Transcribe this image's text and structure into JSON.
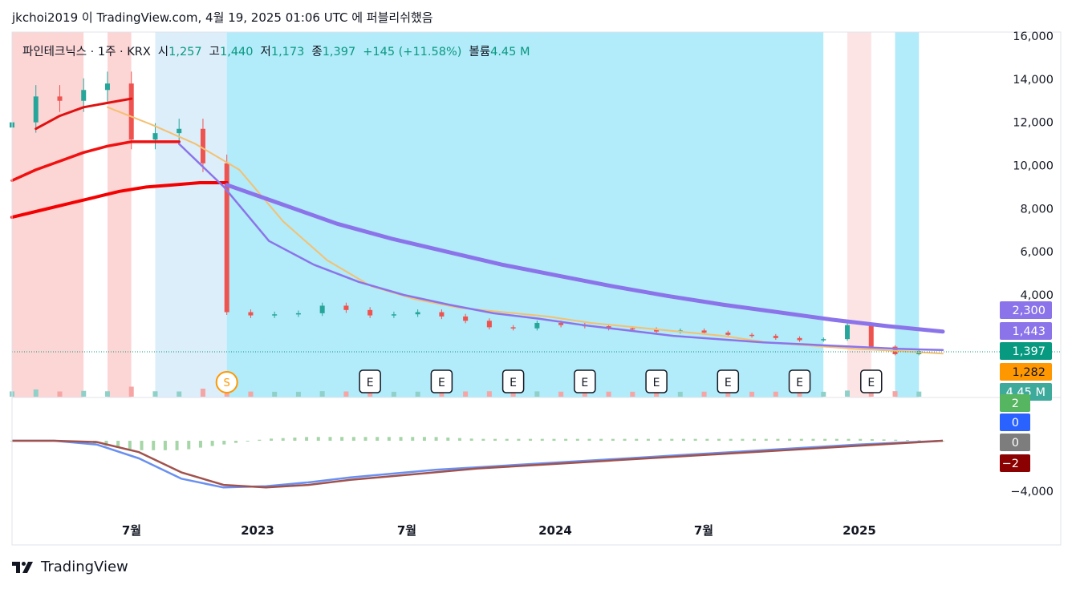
{
  "header": "jkchoi2019 이 TradingView.com, 4월 19, 2025 01:06 UTC 에 퍼블리쉬했음",
  "legend": {
    "symbol": "파인테크닉스 · 1주 · KRX",
    "open_label": "시",
    "open": "1,257",
    "high_label": "고",
    "high": "1,440",
    "low_label": "저",
    "low": "1,173",
    "close_label": "종",
    "close": "1,397",
    "change": "+145 (+11.58%)",
    "volume_label": "볼륨",
    "volume": "4.45 M"
  },
  "brand": "TradingView",
  "chart_data": {
    "type": "candlestick",
    "price_axis": {
      "ticks": [
        "16,000",
        "14,000",
        "12,000",
        "10,000",
        "8,000",
        "6,000",
        "4,000"
      ],
      "range": [
        0,
        16000
      ]
    },
    "macd_axis": {
      "ticks": [
        "−4,000"
      ]
    },
    "time_axis": {
      "ticks": [
        "7월",
        "2023",
        "7월",
        "2024",
        "7월",
        "2025"
      ]
    },
    "price_badges": [
      {
        "text": "2,300",
        "color": "#8b74ea"
      },
      {
        "text": "1,443",
        "color": "#8b74ea"
      },
      {
        "text": "1,397",
        "color": "#089981"
      },
      {
        "text": "1,282",
        "color": "#ff9800"
      },
      {
        "text": "4.45 M",
        "color": "#3daa9c"
      }
    ],
    "macd_badges": [
      {
        "text": "2",
        "color": "#56b560"
      },
      {
        "text": "0",
        "color": "#2962ff"
      },
      {
        "text": "0",
        "color": "#7d7d7d"
      },
      {
        "text": "−2",
        "color": "#8b0000"
      }
    ],
    "events": [
      {
        "label": "S",
        "date": "2022-11"
      },
      {
        "label": "E",
        "date": "2023-05"
      },
      {
        "label": "E",
        "date": "2023-08"
      },
      {
        "label": "E",
        "date": "2023-11"
      },
      {
        "label": "E",
        "date": "2024-02"
      },
      {
        "label": "E",
        "date": "2024-05"
      },
      {
        "label": "E",
        "date": "2024-08"
      },
      {
        "label": "E",
        "date": "2024-11"
      },
      {
        "label": "E",
        "date": "2025-02"
      }
    ],
    "background_zones": [
      {
        "from": "2022-02",
        "to": "2022-05",
        "color": "#fcd5d5"
      },
      {
        "from": "2022-05",
        "to": "2022-06",
        "color": "#ffffff"
      },
      {
        "from": "2022-06",
        "to": "2022-07",
        "color": "#fcd5d5"
      },
      {
        "from": "2022-07",
        "to": "2022-08",
        "color": "#ffffff"
      },
      {
        "from": "2022-08",
        "to": "2022-11",
        "color": "#dbeefa"
      },
      {
        "from": "2022-11",
        "to": "2024-12",
        "color": "#b2ebf9"
      },
      {
        "from": "2024-12",
        "to": "2025-01",
        "color": "#ffffff"
      },
      {
        "from": "2025-01",
        "to": "2025-02",
        "color": "#fde4e4"
      },
      {
        "from": "2025-03",
        "to": "2025-04",
        "color": "#b2ebf9"
      }
    ],
    "series": [
      {
        "name": "close",
        "color": "#131722",
        "x": [
          "2022-02",
          "2022-03",
          "2022-04",
          "2022-05",
          "2022-06",
          "2022-07",
          "2022-08",
          "2022-09",
          "2022-10",
          "2022-11",
          "2022-12",
          "2023-01",
          "2023-02",
          "2023-03",
          "2023-04",
          "2023-05",
          "2023-06",
          "2023-07",
          "2023-08",
          "2023-09",
          "2023-10",
          "2023-11",
          "2023-12",
          "2024-01",
          "2024-02",
          "2024-03",
          "2024-04",
          "2024-05",
          "2024-06",
          "2024-07",
          "2024-08",
          "2024-09",
          "2024-10",
          "2024-11",
          "2024-12",
          "2025-01",
          "2025-02",
          "2025-03",
          "2025-04"
        ],
        "values": [
          12000,
          13200,
          13000,
          13500,
          13800,
          11200,
          11500,
          11700,
          10100,
          3200,
          3050,
          3100,
          3150,
          3500,
          3300,
          3050,
          3100,
          3200,
          3000,
          2800,
          2500,
          2450,
          2700,
          2600,
          2550,
          2450,
          2400,
          2300,
          2350,
          2250,
          2150,
          2100,
          2000,
          1900,
          1950,
          2600,
          1600,
          1250,
          1397
        ]
      },
      {
        "name": "ma-thick-red",
        "color": "#f50000",
        "values": [
          7600,
          7900,
          8200,
          8500,
          8800,
          9000,
          9100,
          9200,
          9200
        ]
      },
      {
        "name": "ma-red-mid",
        "color": "#f01010",
        "values": [
          9300,
          9800,
          10200,
          10600,
          10900,
          11100,
          11100,
          11100
        ]
      },
      {
        "name": "ma-red-top",
        "color": "#e01010",
        "values": [
          11700,
          12300,
          12700,
          12900,
          13100
        ]
      },
      {
        "name": "ma-orange",
        "color": "#f5c071",
        "values": [
          12700,
          11900,
          11000,
          9800,
          7400,
          5600,
          4400,
          3800,
          3400,
          3200,
          3000,
          2700,
          2500,
          2300,
          2100,
          1800,
          1650,
          1500,
          1400,
          1282
        ]
      },
      {
        "name": "ma-purple-thin",
        "color": "#8b74ea",
        "values": [
          11000,
          9000,
          6500,
          5400,
          4600,
          4000,
          3550,
          3150,
          2900,
          2600,
          2350,
          2100,
          1950,
          1800,
          1700,
          1600,
          1500,
          1443
        ]
      },
      {
        "name": "ma-purple-thick",
        "color": "#8b74ea",
        "values": [
          9100,
          8200,
          7300,
          6600,
          6000,
          5400,
          4900,
          4400,
          3950,
          3550,
          3200,
          2850,
          2550,
          2300
        ]
      },
      {
        "name": "macd",
        "color": "#6a8ff0",
        "values": [
          0,
          0,
          -300,
          -1400,
          -3000,
          -3700,
          -3600,
          -3300,
          -2900,
          -2600,
          -2300,
          -2100,
          -1900,
          -1700,
          -1500,
          -1300,
          -1100,
          -900,
          -700,
          -500,
          -300,
          -150,
          0
        ]
      },
      {
        "name": "signal",
        "color": "#a0524d",
        "values": [
          0,
          0,
          -100,
          -900,
          -2500,
          -3500,
          -3700,
          -3500,
          -3100,
          -2800,
          -2500,
          -2200,
          -2000,
          -1800,
          -1600,
          -1400,
          -1200,
          -1000,
          -800,
          -600,
          -400,
          -200,
          0
        ]
      }
    ]
  }
}
